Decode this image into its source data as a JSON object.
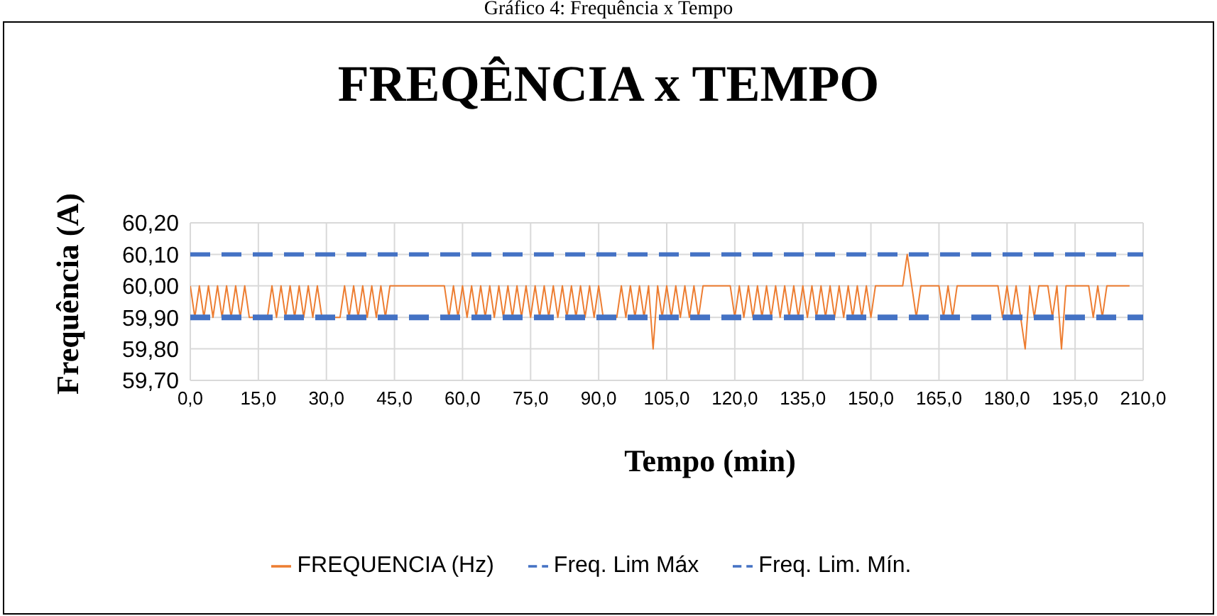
{
  "chart_data": {
    "type": "line",
    "title": "FREQÊNCIA x TEMPO",
    "xlabel": "Tempo  (min)",
    "ylabel": "Frequência (A)",
    "annotations": [
      "Gráfico 4: Frequência x Tempo"
    ],
    "xlim": [
      0,
      210
    ],
    "xticks": [
      {
        "value": 0,
        "label": "0,0"
      },
      {
        "value": 15,
        "label": "15,0"
      },
      {
        "value": 30,
        "label": "30,0"
      },
      {
        "value": 45,
        "label": "45,0"
      },
      {
        "value": 60,
        "label": "60,0"
      },
      {
        "value": 75,
        "label": "75,0"
      },
      {
        "value": 90,
        "label": "90,0"
      },
      {
        "value": 105,
        "label": "105,0"
      },
      {
        "value": 120,
        "label": "120,0"
      },
      {
        "value": 135,
        "label": "135,0"
      },
      {
        "value": 150,
        "label": "150,0"
      },
      {
        "value": 165,
        "label": "165,0"
      },
      {
        "value": 180,
        "label": "180,0"
      },
      {
        "value": 195,
        "label": "195,0"
      },
      {
        "value": 210,
        "label": "210,0"
      }
    ],
    "ylim": [
      59.7,
      60.2
    ],
    "yticks": [
      {
        "value": 59.7,
        "label": "59,70"
      },
      {
        "value": 59.8,
        "label": "59,80"
      },
      {
        "value": 59.9,
        "label": "59,90"
      },
      {
        "value": 60.0,
        "label": "60,00"
      },
      {
        "value": 60.1,
        "label": "60,10"
      },
      {
        "value": 60.2,
        "label": "60,20"
      }
    ],
    "grid": true,
    "legend": "bottom",
    "marker": "none",
    "series": [
      {
        "name": "FREQUENCIA (Hz)",
        "color": "#ed7d31",
        "line_style": "solid",
        "x": [
          0,
          1,
          2,
          3,
          4,
          5,
          6,
          7,
          8,
          9,
          10,
          11,
          12,
          13,
          17,
          18,
          19,
          20,
          21,
          22,
          23,
          24,
          25,
          26,
          27,
          28,
          29,
          33,
          34,
          35,
          36,
          37,
          38,
          39,
          40,
          41,
          42,
          43,
          44,
          56,
          57,
          58,
          59,
          60,
          61,
          62,
          63,
          64,
          65,
          66,
          67,
          68,
          69,
          70,
          71,
          72,
          73,
          74,
          75,
          76,
          77,
          78,
          79,
          80,
          81,
          82,
          83,
          84,
          85,
          86,
          87,
          88,
          89,
          90,
          91,
          94,
          95,
          96,
          97,
          98,
          99,
          100,
          101,
          102,
          103,
          104,
          105,
          106,
          107,
          108,
          109,
          110,
          111,
          112,
          113,
          119,
          120,
          121,
          122,
          123,
          124,
          125,
          126,
          127,
          128,
          129,
          130,
          131,
          132,
          133,
          134,
          135,
          136,
          137,
          138,
          139,
          140,
          141,
          142,
          143,
          144,
          145,
          146,
          147,
          148,
          149,
          150,
          151,
          157,
          158,
          159,
          160,
          161,
          165,
          166,
          167,
          168,
          169,
          178,
          179,
          180,
          181,
          182,
          183,
          184,
          185,
          186,
          187,
          189,
          190,
          191,
          192,
          193,
          198,
          199,
          200,
          201,
          202,
          207
        ],
        "values": [
          60,
          59.9,
          60,
          59.9,
          60,
          59.9,
          60,
          59.9,
          60,
          59.9,
          60,
          59.9,
          60,
          59.9,
          59.9,
          60,
          59.9,
          60,
          59.9,
          60,
          59.9,
          60,
          59.9,
          60,
          59.9,
          60,
          59.9,
          59.9,
          60,
          59.9,
          60,
          59.9,
          60,
          59.9,
          60,
          59.9,
          60,
          59.9,
          60,
          60,
          59.9,
          60,
          59.9,
          60,
          59.9,
          60,
          59.9,
          60,
          59.9,
          60,
          59.9,
          60,
          59.9,
          60,
          59.9,
          60,
          59.9,
          60,
          59.9,
          60,
          59.9,
          60,
          59.9,
          60,
          59.9,
          60,
          59.9,
          60,
          59.9,
          60,
          59.9,
          60,
          59.9,
          60,
          59.9,
          59.9,
          60,
          59.9,
          60,
          59.9,
          60,
          59.9,
          60,
          59.8,
          60,
          59.9,
          60,
          59.9,
          60,
          59.9,
          60,
          59.9,
          60,
          59.9,
          60,
          60,
          59.9,
          60,
          59.9,
          60,
          59.9,
          60,
          59.9,
          60,
          59.9,
          60,
          59.9,
          60,
          59.9,
          60,
          59.9,
          60,
          59.9,
          60,
          59.9,
          60,
          59.9,
          60,
          59.9,
          60,
          59.9,
          60,
          59.9,
          60,
          59.9,
          60,
          59.9,
          60,
          60,
          60.1,
          60,
          59.9,
          60,
          60,
          59.9,
          60,
          59.9,
          60,
          60,
          59.9,
          60,
          59.9,
          60,
          59.9,
          59.8,
          60,
          59.9,
          60,
          60,
          59.9,
          60,
          59.8,
          60,
          60,
          59.9,
          60,
          59.9,
          60,
          60
        ]
      },
      {
        "name": "Freq. Lim Máx",
        "color": "#4472c4",
        "line_style": "dashed",
        "x": [
          0,
          210
        ],
        "values": [
          60.1,
          60.1
        ]
      },
      {
        "name": "Freq. Lim. Mín.",
        "color": "#4472c4",
        "line_style": "dashed",
        "x": [
          0,
          210
        ],
        "values": [
          59.9,
          59.9
        ]
      }
    ]
  }
}
